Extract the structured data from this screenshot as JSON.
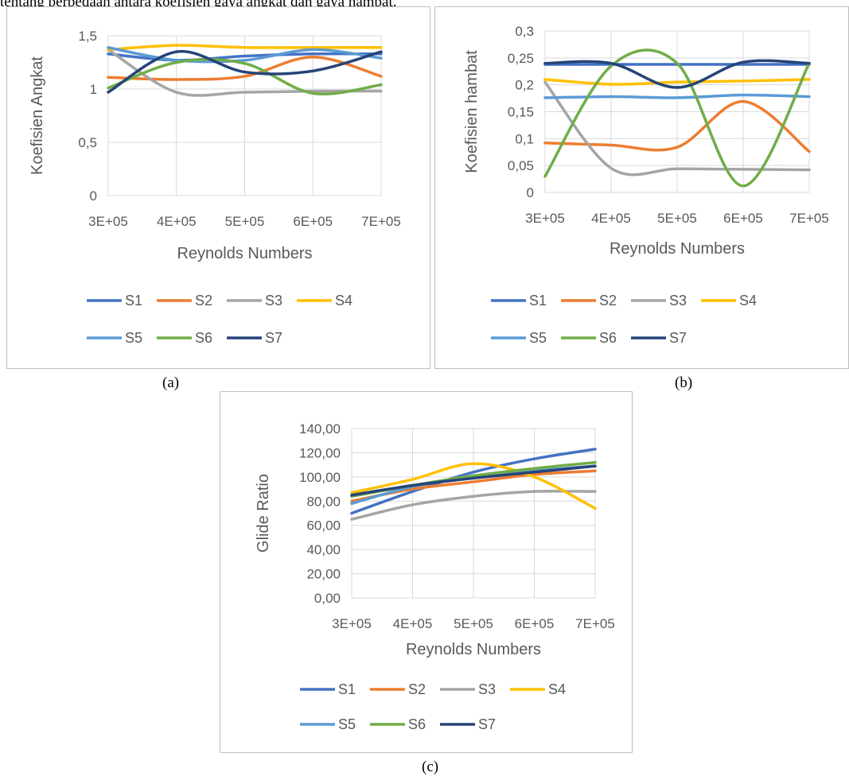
{
  "header_text": "tentang perbedaan antara koefisien gaya angkat dan gaya hambat.",
  "captions": {
    "a": "(a)",
    "b": "(b)",
    "c": "(c)"
  },
  "colors": {
    "S1": "#4472c4",
    "S2": "#ed7d31",
    "S3": "#a5a5a5",
    "S4": "#ffc000",
    "S5": "#5b9bd5",
    "S6": "#70ad47",
    "S7": "#264478"
  },
  "chart_data": [
    {
      "id": "a",
      "type": "line",
      "title": "",
      "xlabel": "Reynolds Numbers",
      "ylabel": "Koefisien Angkat",
      "x": [
        300000,
        400000,
        500000,
        600000,
        700000
      ],
      "x_tick_labels": [
        "3E+05",
        "4E+05",
        "5E+05",
        "6E+05",
        "7E+05"
      ],
      "y_ticks": [
        0,
        0.5,
        1,
        1.5
      ],
      "y_tick_labels": [
        "0",
        "0,5",
        "1",
        "1,5"
      ],
      "ylim": [
        0,
        1.5
      ],
      "grid": true,
      "legend": "bottom",
      "series": [
        {
          "name": "S1",
          "values": [
            1.33,
            1.27,
            1.31,
            1.33,
            1.33
          ]
        },
        {
          "name": "S2",
          "values": [
            1.11,
            1.09,
            1.12,
            1.3,
            1.12
          ]
        },
        {
          "name": "S3",
          "values": [
            1.37,
            0.97,
            0.97,
            0.98,
            0.98
          ]
        },
        {
          "name": "S4",
          "values": [
            1.37,
            1.41,
            1.39,
            1.39,
            1.39
          ]
        },
        {
          "name": "S5",
          "values": [
            1.39,
            1.27,
            1.27,
            1.37,
            1.29
          ]
        },
        {
          "name": "S6",
          "values": [
            1.01,
            1.25,
            1.24,
            0.96,
            1.04
          ]
        },
        {
          "name": "S7",
          "values": [
            0.97,
            1.35,
            1.16,
            1.17,
            1.35
          ]
        }
      ]
    },
    {
      "id": "b",
      "type": "line",
      "title": "",
      "xlabel": "Reynolds Numbers",
      "ylabel": "Koefisien hambat",
      "x": [
        300000,
        400000,
        500000,
        600000,
        700000
      ],
      "x_tick_labels": [
        "3E+05",
        "4E+05",
        "5E+05",
        "6E+05",
        "7E+05"
      ],
      "y_ticks": [
        0,
        0.05,
        0.1,
        0.15,
        0.2,
        0.25,
        0.3
      ],
      "y_tick_labels": [
        "0",
        "0,05",
        "0,1",
        "0,15",
        "0,2",
        "0,25",
        "0,3"
      ],
      "ylim": [
        0,
        0.3
      ],
      "grid": true,
      "legend": "bottom",
      "series": [
        {
          "name": "S1",
          "values": [
            0.238,
            0.238,
            0.238,
            0.238,
            0.238
          ]
        },
        {
          "name": "S2",
          "values": [
            0.092,
            0.088,
            0.084,
            0.169,
            0.076
          ]
        },
        {
          "name": "S3",
          "values": [
            0.205,
            0.045,
            0.044,
            0.043,
            0.042
          ]
        },
        {
          "name": "S4",
          "values": [
            0.21,
            0.201,
            0.205,
            0.207,
            0.21
          ]
        },
        {
          "name": "S5",
          "values": [
            0.176,
            0.178,
            0.176,
            0.181,
            0.178
          ]
        },
        {
          "name": "S6",
          "values": [
            0.03,
            0.235,
            0.24,
            0.012,
            0.24
          ]
        },
        {
          "name": "S7",
          "values": [
            0.24,
            0.24,
            0.195,
            0.242,
            0.24
          ]
        }
      ]
    },
    {
      "id": "c",
      "type": "line",
      "title": "",
      "xlabel": "Reynolds Numbers",
      "ylabel": "Glide Ratio",
      "x": [
        300000,
        400000,
        500000,
        600000,
        700000
      ],
      "x_tick_labels": [
        "3E+05",
        "4E+05",
        "5E+05",
        "6E+05",
        "7E+05"
      ],
      "y_ticks": [
        0,
        20,
        40,
        60,
        80,
        100,
        120,
        140
      ],
      "y_tick_labels": [
        "0,00",
        "20,00",
        "40,00",
        "60,00",
        "80,00",
        "100,00",
        "120,00",
        "140,00"
      ],
      "ylim": [
        0,
        140
      ],
      "grid": true,
      "legend": "bottom",
      "series": [
        {
          "name": "S1",
          "values": [
            70,
            88,
            104,
            115,
            123
          ]
        },
        {
          "name": "S2",
          "values": [
            80,
            90,
            96,
            102,
            105
          ]
        },
        {
          "name": "S3",
          "values": [
            65,
            77,
            84,
            88,
            88
          ]
        },
        {
          "name": "S4",
          "values": [
            87,
            98,
            111,
            100,
            74
          ]
        },
        {
          "name": "S5",
          "values": [
            78,
            92,
            100,
            105,
            109
          ]
        },
        {
          "name": "S6",
          "values": [
            84,
            93,
            101,
            107,
            112
          ]
        },
        {
          "name": "S7",
          "values": [
            85,
            93,
            99,
            104,
            109
          ]
        }
      ]
    }
  ]
}
